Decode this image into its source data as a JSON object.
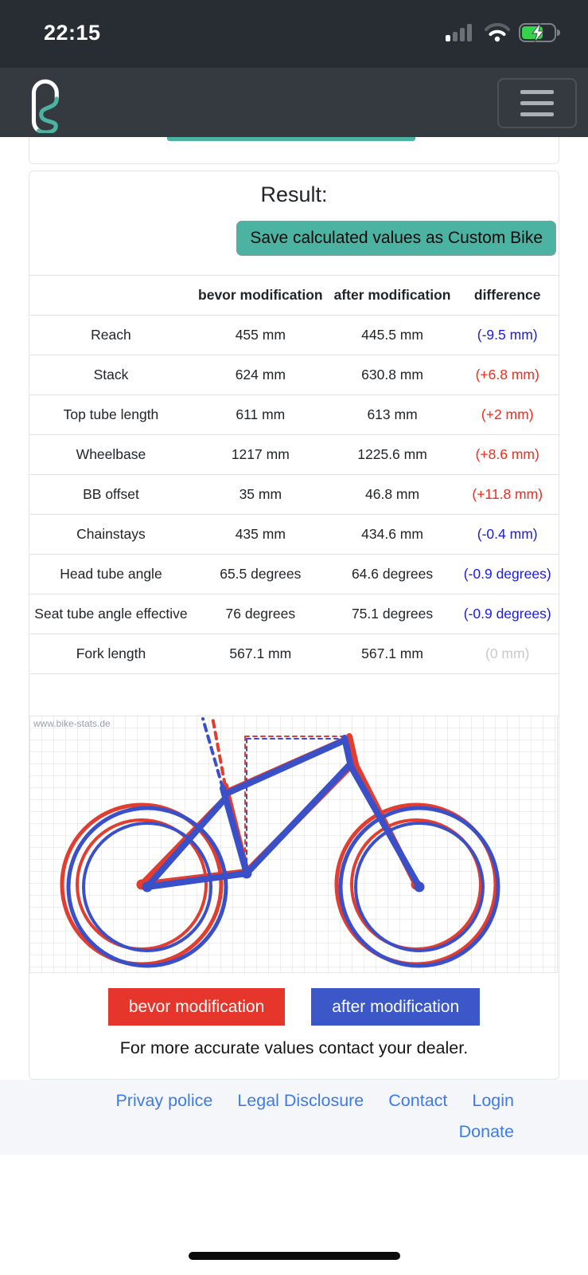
{
  "status_bar": {
    "time": "22:15",
    "icons": [
      "cellular-signal",
      "wifi",
      "battery-charging"
    ]
  },
  "nav": {
    "logo_alt": "bike-stats logo",
    "menu_button": "menu"
  },
  "result_card": {
    "heading": "Result:",
    "save_button_label": "Save calculated values as Custom Bike"
  },
  "table": {
    "headers": {
      "label": "",
      "before": "bevor modification",
      "after": "after modification",
      "difference": "difference"
    },
    "rows": [
      {
        "label": "Reach",
        "before": "455 mm",
        "after": "445.5 mm",
        "difference": "(-9.5 mm)",
        "diff_color": "blue"
      },
      {
        "label": "Stack",
        "before": "624 mm",
        "after": "630.8 mm",
        "difference": "(+6.8 mm)",
        "diff_color": "red"
      },
      {
        "label": "Top tube length",
        "before": "611 mm",
        "after": "613 mm",
        "difference": "(+2 mm)",
        "diff_color": "red"
      },
      {
        "label": "Wheelbase",
        "before": "1217 mm",
        "after": "1225.6 mm",
        "difference": "(+8.6 mm)",
        "diff_color": "red"
      },
      {
        "label": "BB offset",
        "before": "35 mm",
        "after": "46.8 mm",
        "difference": "(+11.8 mm)",
        "diff_color": "red"
      },
      {
        "label": "Chainstays",
        "before": "435 mm",
        "after": "434.6 mm",
        "difference": "(-0.4 mm)",
        "diff_color": "blue"
      },
      {
        "label": "Head tube angle",
        "before": "65.5 degrees",
        "after": "64.6 degrees",
        "difference": "(-0.9 degrees)",
        "diff_color": "blue"
      },
      {
        "label": "Seat tube angle effective",
        "before": "76 degrees",
        "after": "75.1 degrees",
        "difference": "(-0.9 degrees)",
        "diff_color": "blue"
      },
      {
        "label": "Fork length",
        "before": "567.1 mm",
        "after": "567.1 mm",
        "difference": "(0 mm)",
        "diff_color": "muted"
      }
    ]
  },
  "diagram": {
    "watermark": "www.bike-stats.de",
    "legend": [
      {
        "label": "bevor modification",
        "color": "#e6362b"
      },
      {
        "label": "after modification",
        "color": "#3b57c8"
      }
    ],
    "note": "For more accurate values contact your dealer."
  },
  "footer": {
    "links": [
      "Privay police",
      "Legal Disclosure",
      "Contact",
      "Login",
      "Donate"
    ]
  },
  "colors": {
    "accent_teal": "#4cb2a1",
    "header_dark": "#343a40",
    "statusbar_dark": "#282c33",
    "diff_negative_blue": "#1a1aee",
    "diff_positive_red": "#f42a1d",
    "diff_zero_gray": "#c9c9c9",
    "bike_before_red": "#e6362b",
    "bike_after_blue": "#3b57c8",
    "link_blue": "#3d7be8"
  }
}
